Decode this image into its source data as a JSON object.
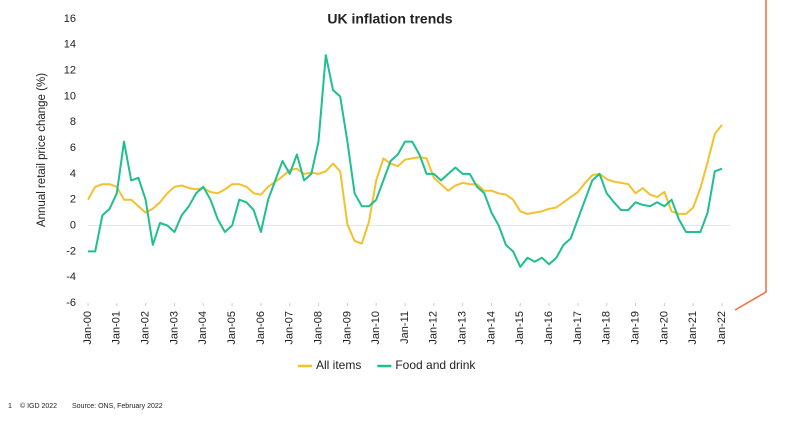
{
  "chart_data": {
    "type": "line",
    "title": "UK inflation trends",
    "y_label": "Annual retail price change (%)",
    "x": [
      "2000-01",
      "2000-04",
      "2000-07",
      "2000-10",
      "2001-01",
      "2001-04",
      "2001-07",
      "2001-10",
      "2002-01",
      "2002-04",
      "2002-07",
      "2002-10",
      "2003-01",
      "2003-04",
      "2003-07",
      "2003-10",
      "2004-01",
      "2004-04",
      "2004-07",
      "2004-10",
      "2005-01",
      "2005-04",
      "2005-07",
      "2005-10",
      "2006-01",
      "2006-04",
      "2006-07",
      "2006-10",
      "2007-01",
      "2007-04",
      "2007-07",
      "2007-10",
      "2008-01",
      "2008-04",
      "2008-07",
      "2008-10",
      "2009-01",
      "2009-04",
      "2009-07",
      "2009-10",
      "2010-01",
      "2010-04",
      "2010-07",
      "2010-10",
      "2011-01",
      "2011-04",
      "2011-07",
      "2011-10",
      "2012-01",
      "2012-04",
      "2012-07",
      "2012-10",
      "2013-01",
      "2013-04",
      "2013-07",
      "2013-10",
      "2014-01",
      "2014-04",
      "2014-07",
      "2014-10",
      "2015-01",
      "2015-04",
      "2015-07",
      "2015-10",
      "2016-01",
      "2016-04",
      "2016-07",
      "2016-10",
      "2017-01",
      "2017-04",
      "2017-07",
      "2017-10",
      "2018-01",
      "2018-04",
      "2018-07",
      "2018-10",
      "2019-01",
      "2019-04",
      "2019-07",
      "2019-10",
      "2020-01",
      "2020-04",
      "2020-07",
      "2020-10",
      "2021-01",
      "2021-04",
      "2021-07",
      "2021-10",
      "2022-01"
    ],
    "series": [
      {
        "name": "All items",
        "color": "#f2c12e",
        "values": [
          2.0,
          3.0,
          3.2,
          3.2,
          3.0,
          2.0,
          2.0,
          1.5,
          1.0,
          1.3,
          1.8,
          2.5,
          3.0,
          3.1,
          2.9,
          2.8,
          2.9,
          2.6,
          2.5,
          2.8,
          3.2,
          3.2,
          3.0,
          2.5,
          2.4,
          3.0,
          3.4,
          3.8,
          4.3,
          4.4,
          4.0,
          4.1,
          4.0,
          4.2,
          4.8,
          4.2,
          0.1,
          -1.2,
          -1.4,
          0.3,
          3.5,
          5.2,
          4.8,
          4.6,
          5.1,
          5.2,
          5.3,
          5.2,
          3.7,
          3.2,
          2.7,
          3.1,
          3.3,
          3.2,
          3.2,
          2.7,
          2.7,
          2.5,
          2.4,
          2.0,
          1.1,
          0.9,
          1.0,
          1.1,
          1.3,
          1.4,
          1.8,
          2.2,
          2.6,
          3.3,
          3.9,
          4.0,
          3.6,
          3.4,
          3.3,
          3.2,
          2.5,
          2.9,
          2.4,
          2.2,
          2.6,
          1.1,
          0.9,
          0.9,
          1.4,
          2.9,
          4.9,
          7.1,
          7.8
        ]
      },
      {
        "name": "Food and drink",
        "color": "#1fbf8f",
        "values": [
          -2.0,
          -2.0,
          0.8,
          1.3,
          2.5,
          6.5,
          3.5,
          3.7,
          2.0,
          -1.5,
          0.2,
          0.0,
          -0.5,
          0.8,
          1.5,
          2.5,
          3.0,
          2.0,
          0.5,
          -0.5,
          0.0,
          2.0,
          1.8,
          1.2,
          -0.5,
          2.0,
          3.5,
          5.0,
          4.0,
          5.5,
          3.5,
          4.0,
          6.5,
          13.2,
          10.5,
          10.0,
          6.5,
          2.5,
          1.5,
          1.5,
          2.0,
          3.5,
          5.0,
          5.5,
          6.5,
          6.5,
          5.5,
          4.0,
          4.0,
          3.5,
          4.0,
          4.5,
          4.0,
          4.0,
          3.0,
          2.5,
          1.0,
          0.0,
          -1.5,
          -2.0,
          -3.2,
          -2.5,
          -2.8,
          -2.5,
          -3.0,
          -2.5,
          -1.5,
          -1.0,
          0.5,
          2.0,
          3.5,
          4.0,
          2.5,
          1.8,
          1.2,
          1.2,
          1.8,
          1.6,
          1.5,
          1.8,
          1.5,
          2.0,
          0.5,
          -0.5,
          -0.5,
          -0.5,
          1.0,
          4.2,
          4.4
        ]
      }
    ],
    "xlim": [
      "2000-01",
      "2022-01"
    ],
    "xticks": [
      {
        "value": "2000-01",
        "label": "Jan-00"
      },
      {
        "value": "2001-01",
        "label": "Jan-01"
      },
      {
        "value": "2002-01",
        "label": "Jan-02"
      },
      {
        "value": "2003-01",
        "label": "Jan-03"
      },
      {
        "value": "2004-01",
        "label": "Jan-04"
      },
      {
        "value": "2005-01",
        "label": "Jan-05"
      },
      {
        "value": "2006-01",
        "label": "Jan-06"
      },
      {
        "value": "2007-01",
        "label": "Jan-07"
      },
      {
        "value": "2008-01",
        "label": "Jan-08"
      },
      {
        "value": "2009-01",
        "label": "Jan-09"
      },
      {
        "value": "2010-01",
        "label": "Jan-10"
      },
      {
        "value": "2011-01",
        "label": "Jan-11"
      },
      {
        "value": "2012-01",
        "label": "Jan-12"
      },
      {
        "value": "2013-01",
        "label": "Jan-13"
      },
      {
        "value": "2014-01",
        "label": "Jan-14"
      },
      {
        "value": "2015-01",
        "label": "Jan-15"
      },
      {
        "value": "2016-01",
        "label": "Jan-16"
      },
      {
        "value": "2017-01",
        "label": "Jan-17"
      },
      {
        "value": "2018-01",
        "label": "Jan-18"
      },
      {
        "value": "2019-01",
        "label": "Jan-19"
      },
      {
        "value": "2020-01",
        "label": "Jan-20"
      },
      {
        "value": "2021-01",
        "label": "Jan-21"
      },
      {
        "value": "2022-01",
        "label": "Jan-22"
      }
    ],
    "ylim": [
      -6,
      16
    ],
    "yticks": [
      -6,
      -4,
      -2,
      0,
      2,
      4,
      6,
      8,
      10,
      12,
      14,
      16
    ],
    "grid": false,
    "legend": "bottom"
  },
  "footer": {
    "page": "1",
    "copyright": "© IGD 2022",
    "source": "Source: ONS, February 2022"
  }
}
